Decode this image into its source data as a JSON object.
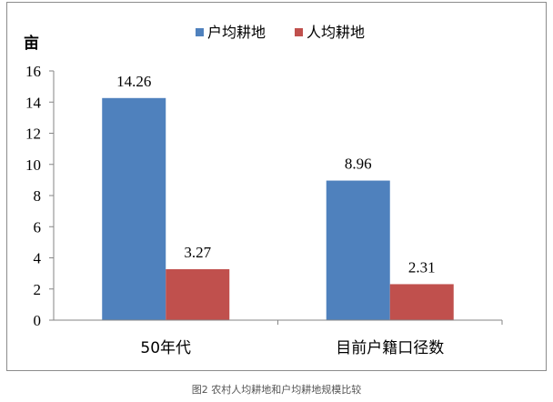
{
  "chart_data": {
    "type": "bar",
    "title": "",
    "ylabel": "亩",
    "xlabel": "",
    "categories": [
      "50年代",
      "目前户籍口径数"
    ],
    "series": [
      {
        "name": "户均耕地",
        "color": "#4f81bd",
        "values": [
          14.26,
          8.96
        ]
      },
      {
        "name": "人均耕地",
        "color": "#c0504d",
        "values": [
          3.27,
          2.31
        ]
      }
    ],
    "ylim": [
      0,
      16
    ],
    "yticks": [
      0,
      2,
      4,
      6,
      8,
      10,
      12,
      14,
      16
    ],
    "data_labels": [
      "14.26",
      "3.27",
      "8.96",
      "2.31"
    ],
    "grid": false,
    "legend_position": "top"
  },
  "caption": "图2 农村人均耕地和户均耕地规模比较"
}
